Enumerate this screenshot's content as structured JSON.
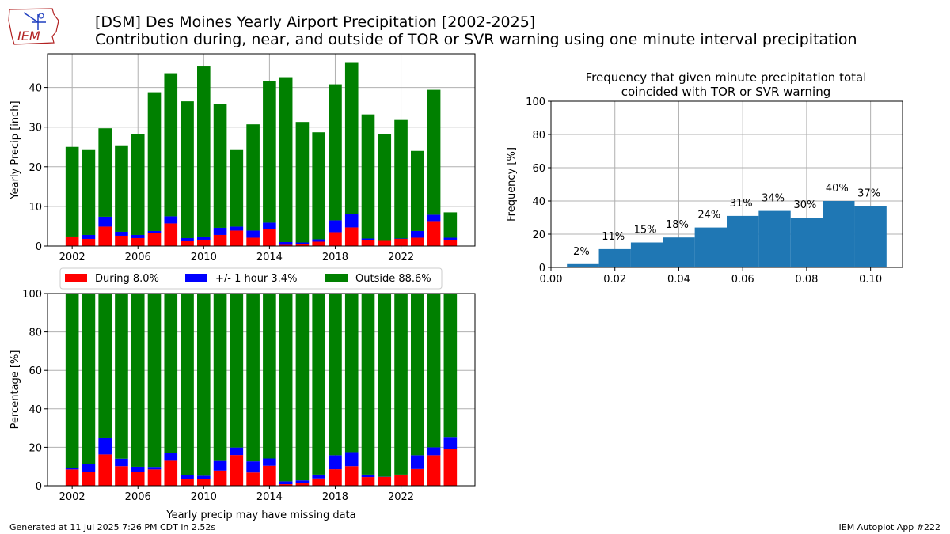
{
  "header": {
    "logo_text": "IEM",
    "title_line1": "[DSM] Des Moines Yearly Airport Precipitation [2002-2025]",
    "title_line2": "Contribution during, near, and outside of TOR or SVR warning using one minute interval precipitation"
  },
  "footer": {
    "generated": "Generated at 11 Jul 2025 7:26 PM CDT in 2.52s",
    "app": "IEM Autoplot App #222"
  },
  "colors": {
    "during": "#ff0000",
    "near": "#0000ff",
    "outside": "#008000",
    "hist": "#1f77b4",
    "grid": "#b0b0b0"
  },
  "legend": {
    "placement": "between top-left and bottom-left panels",
    "entries": [
      {
        "label": "During 8.0%",
        "color": "#ff0000"
      },
      {
        "label": "+/- 1 hour 3.4%",
        "color": "#0000ff"
      },
      {
        "label": "Outside 88.6%",
        "color": "#008000"
      }
    ]
  },
  "chart_data": [
    {
      "type": "bar",
      "stacked": true,
      "title": "",
      "ylabel": "Yearly Precip [inch]",
      "xlabel": "",
      "ylim": [
        0,
        48.5
      ],
      "xlim": [
        2000.5,
        2026.5
      ],
      "yticks": [
        0,
        10,
        20,
        30,
        40
      ],
      "xticks": [
        2002,
        2006,
        2010,
        2014,
        2018,
        2022
      ],
      "grid": true,
      "x": [
        2002,
        2003,
        2004,
        2005,
        2006,
        2007,
        2008,
        2009,
        2010,
        2011,
        2012,
        2013,
        2014,
        2015,
        2016,
        2017,
        2018,
        2019,
        2020,
        2021,
        2022,
        2023,
        2024,
        2025
      ],
      "series": [
        {
          "name": "During 8.0%",
          "values": [
            2.2,
            1.8,
            4.9,
            2.6,
            2.0,
            3.3,
            5.7,
            1.2,
            1.6,
            2.8,
            3.9,
            2.1,
            4.3,
            0.3,
            0.5,
            1.1,
            3.5,
            4.7,
            1.5,
            1.3,
            1.8,
            2.1,
            6.3,
            1.6
          ]
        },
        {
          "name": "+/- 1 hour 3.4%",
          "values": [
            0.2,
            1.0,
            2.5,
            1.0,
            0.8,
            0.5,
            1.8,
            0.8,
            0.8,
            1.8,
            1.0,
            1.8,
            1.6,
            0.7,
            0.4,
            0.6,
            3.0,
            3.4,
            0.4,
            0.0,
            0.1,
            1.7,
            1.6,
            0.5
          ]
        },
        {
          "name": "Outside 88.6%",
          "values": [
            22.6,
            21.6,
            22.3,
            21.8,
            25.4,
            35.0,
            36.1,
            34.5,
            42.9,
            31.3,
            19.5,
            26.8,
            35.8,
            41.6,
            30.4,
            27.0,
            34.3,
            38.1,
            31.3,
            26.9,
            29.9,
            20.2,
            31.5,
            6.4
          ]
        }
      ]
    },
    {
      "type": "bar",
      "title": "Frequency that given minute precipitation total\ncoincided with TOR or SVR warning",
      "xlabel": "",
      "ylabel": "Frequency [%]",
      "xlim": [
        0.0,
        0.11
      ],
      "ylim": [
        0,
        100
      ],
      "xticks": [
        "0.00",
        "0.02",
        "0.04",
        "0.06",
        "0.08",
        "0.10"
      ],
      "yticks": [
        0,
        20,
        40,
        60,
        80,
        100
      ],
      "grid": true,
      "categories": [
        0.01,
        0.02,
        0.03,
        0.04,
        0.05,
        0.06,
        0.07,
        0.08,
        0.09,
        0.1
      ],
      "values": [
        2,
        11,
        15,
        18,
        24,
        31,
        34,
        30,
        40,
        37
      ],
      "labels": [
        "2%",
        "11%",
        "15%",
        "18%",
        "24%",
        "31%",
        "34%",
        "30%",
        "40%",
        "37%"
      ]
    },
    {
      "type": "bar",
      "stacked": true,
      "title": "",
      "ylabel": "Percentage [%]",
      "xlabel": "Yearly precip may have missing data",
      "ylim": [
        0,
        100
      ],
      "xlim": [
        2000.5,
        2026.5
      ],
      "yticks": [
        0,
        20,
        40,
        60,
        80,
        100
      ],
      "xticks": [
        2002,
        2006,
        2010,
        2014,
        2018,
        2022
      ],
      "grid": true,
      "x": [
        2002,
        2003,
        2004,
        2005,
        2006,
        2007,
        2008,
        2009,
        2010,
        2011,
        2012,
        2013,
        2014,
        2015,
        2016,
        2017,
        2018,
        2019,
        2020,
        2021,
        2022,
        2023,
        2024,
        2025
      ],
      "series": [
        {
          "name": "During 8.0%",
          "values": [
            8.5,
            7.2,
            16.3,
            10.2,
            7.2,
            8.5,
            13.0,
            3.4,
            3.6,
            7.9,
            16.0,
            6.9,
            10.4,
            0.8,
            1.4,
            3.8,
            8.6,
            10.2,
            4.5,
            4.6,
            5.5,
            8.7,
            15.9,
            19.0
          ]
        },
        {
          "name": "+/- 1 hour 3.4%",
          "values": [
            0.8,
            4.1,
            8.4,
            3.9,
            2.7,
            1.3,
            4.1,
            2.1,
            1.6,
            5.0,
            3.9,
            5.8,
            3.8,
            1.5,
            1.4,
            2.0,
            7.3,
            7.3,
            1.3,
            0.1,
            0.3,
            7.2,
            4.1,
            6.0
          ]
        },
        {
          "name": "Outside 88.6%",
          "values": [
            90.7,
            88.7,
            75.3,
            85.9,
            90.1,
            90.2,
            82.9,
            94.5,
            94.8,
            87.1,
            80.1,
            87.3,
            85.8,
            97.7,
            97.2,
            94.2,
            84.1,
            82.5,
            94.2,
            95.3,
            94.2,
            84.1,
            80.0,
            75.0
          ]
        }
      ]
    }
  ]
}
